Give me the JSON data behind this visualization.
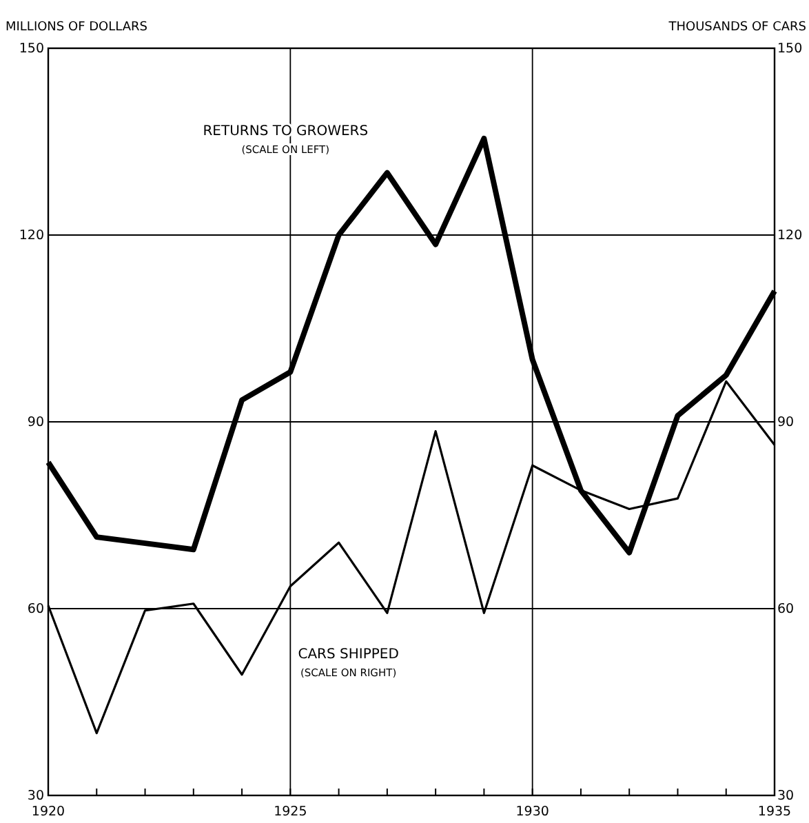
{
  "chart_data": {
    "type": "line",
    "ylabel": "MILLIONS OF DOLLARS",
    "y2label": "THOUSANDS OF CARS",
    "x": [
      1920,
      1921,
      1922,
      1923,
      1924,
      1925,
      1926,
      1927,
      1928,
      1929,
      1930,
      1931,
      1932,
      1933,
      1934,
      1935
    ],
    "series": [
      {
        "name": "RETURNS TO GROWERS",
        "color": "#000000",
        "values": [
          83.5,
          71.5,
          70.5,
          69.5,
          93.5,
          98,
          120,
          130,
          118.5,
          135.5,
          100,
          79,
          69,
          91,
          97.5,
          111
        ]
      },
      {
        "name": "CARS SHIPPED",
        "color": "#000000",
        "axis": "y2",
        "values": [
          60.5,
          40,
          59.7,
          60.8,
          49.4,
          63.6,
          70.6,
          59.3,
          88.5,
          59.3,
          83,
          79,
          76,
          77.7,
          96.5,
          86.3
        ]
      }
    ],
    "annotations": [
      "(SCALE ON LEFT)",
      "(SCALE ON RIGHT)"
    ],
    "xlim": [
      1920,
      1935
    ],
    "xticks": [
      1920,
      {
        "value": 1921,
        "label": null
      },
      {
        "value": 1922,
        "label": null
      },
      {
        "value": 1923,
        "label": null
      },
      {
        "value": 1924,
        "label": null
      },
      1925,
      {
        "value": 1926,
        "label": null
      },
      {
        "value": 1927,
        "label": null
      },
      {
        "value": 1928,
        "label": null
      },
      {
        "value": 1929,
        "label": null
      },
      1930,
      {
        "value": 1931,
        "label": null
      },
      {
        "value": 1932,
        "label": null
      },
      {
        "value": 1933,
        "label": null
      },
      {
        "value": 1934,
        "label": null
      },
      1935
    ],
    "ylim": [
      30,
      150
    ],
    "yticks": [
      30,
      60,
      90,
      120,
      150
    ],
    "y2lim": [
      30,
      150
    ],
    "y2ticks": [
      30,
      60,
      90,
      120,
      150
    ],
    "grid": true,
    "marker": "none",
    "line_style": "solid"
  }
}
